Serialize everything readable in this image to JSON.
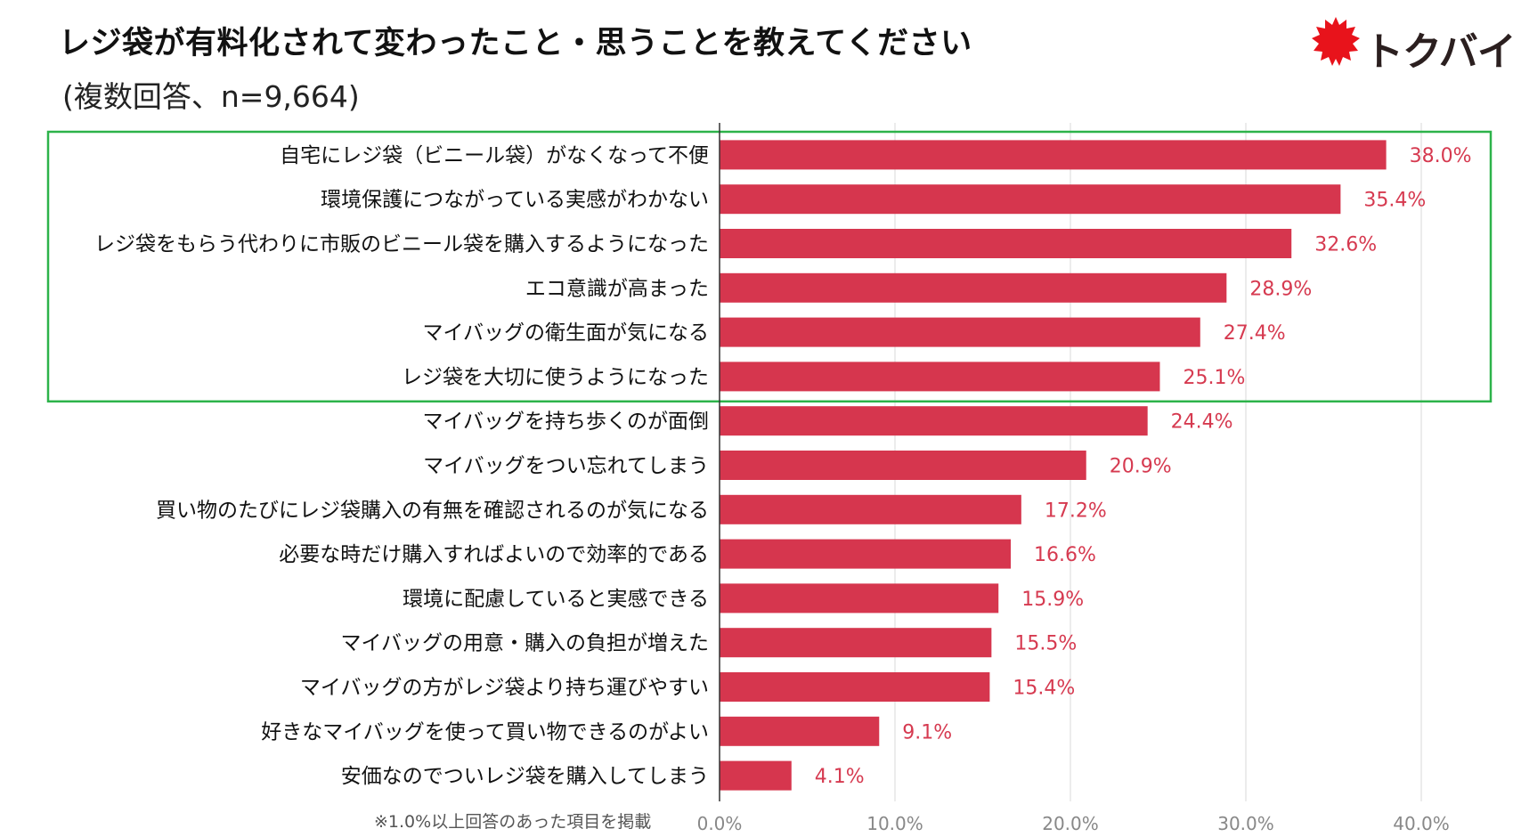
{
  "header": {
    "title": "レジ袋が有料化されて変わったこと・思うことを教えてください",
    "subtitle": "(複数回答、n=9,664)"
  },
  "logo": {
    "text": "トクバイ",
    "color": "#e8131b"
  },
  "footnote": "※1.0%以上回答のあった項目を掲載",
  "colors": {
    "bar": "#d6364e",
    "value_label": "#d63a50",
    "highlight_box": "#2db34a",
    "grid": "#d9d9d9"
  },
  "chart_data": {
    "type": "bar",
    "orientation": "horizontal",
    "title": "レジ袋が有料化されて変わったこと・思うことを教えてください",
    "categories": [
      "自宅にレジ袋（ビニール袋）がなくなって不便",
      "環境保護につながっている実感がわかない",
      "レジ袋をもらう代わりに市販のビニール袋を購入するようになった",
      "エコ意識が高まった",
      "マイバッグの衛生面が気になる",
      "レジ袋を大切に使うようになった",
      "マイバッグを持ち歩くのが面倒",
      "マイバッグをつい忘れてしまう",
      "買い物のたびにレジ袋購入の有無を確認されるのが気になる",
      "必要な時だけ購入すればよいので効率的である",
      "環境に配慮していると実感できる",
      "マイバッグの用意・購入の負担が増えた",
      "マイバッグの方がレジ袋より持ち運びやすい",
      "好きなマイバッグを使って買い物できるのがよい",
      "安価なのでついレジ袋を購入してしまう"
    ],
    "values": [
      38.0,
      35.4,
      32.6,
      28.9,
      27.4,
      25.1,
      24.4,
      20.9,
      17.2,
      16.6,
      15.9,
      15.5,
      15.4,
      9.1,
      4.1
    ],
    "value_labels": [
      "38.0%",
      "35.4%",
      "32.6%",
      "28.9%",
      "27.4%",
      "25.1%",
      "24.4%",
      "20.9%",
      "17.2%",
      "16.6%",
      "15.9%",
      "15.5%",
      "15.4%",
      "9.1%",
      "4.1%"
    ],
    "xlim": [
      0,
      40
    ],
    "xticks": [
      0,
      10,
      20,
      30,
      40
    ],
    "xtick_labels": [
      "0.0%",
      "10.0%",
      "20.0%",
      "30.0%",
      "40.0%"
    ],
    "grid": true,
    "highlighted_rows": 6
  }
}
